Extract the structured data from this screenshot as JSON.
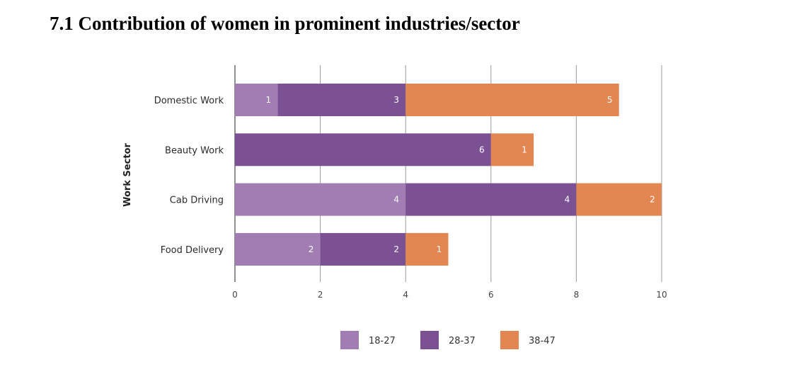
{
  "heading": "7.1 Contribution of women in prominent industries/sector",
  "chart_data": {
    "type": "bar",
    "orientation": "horizontal",
    "stacked": true,
    "title": "",
    "xlabel": "",
    "ylabel": "Work Sector",
    "categories": [
      "Domestic Work",
      "Beauty Work",
      "Cab Driving",
      "Food Delivery"
    ],
    "series": [
      {
        "name": "18-27",
        "color": "#a17db3",
        "values": [
          1,
          0,
          4,
          2
        ]
      },
      {
        "name": "28-37",
        "color": "#7b5194",
        "values": [
          3,
          6,
          4,
          2
        ]
      },
      {
        "name": "38-47",
        "color": "#e28752",
        "values": [
          5,
          1,
          2,
          1
        ]
      }
    ],
    "xlim": [
      0,
      10
    ],
    "xticks": [
      0,
      2,
      4,
      6,
      8,
      10
    ],
    "grid": true,
    "legend": "bottom"
  }
}
